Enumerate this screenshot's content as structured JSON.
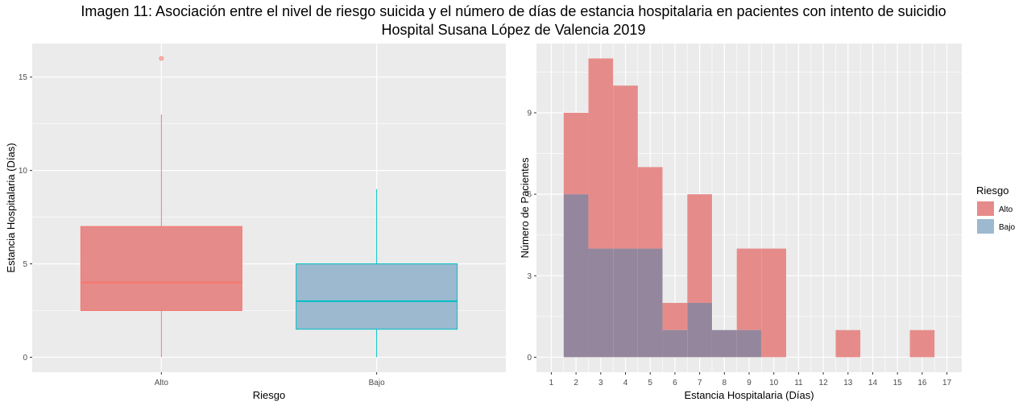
{
  "title_line1": "Imagen 11: Asociación entre el nivel de riesgo suicida y el número de días de estancia hospitalaria en pacientes con intento de suicidio",
  "title_line2": "Hospital Susana López de Valencia 2019",
  "colors": {
    "alto": "#F8766D",
    "bajo": "#00BFC4",
    "alto_fill": "#E58C8A",
    "bajo_fill": "#9CB9D0",
    "overlap_fill": "#94879D",
    "panel": "#EBEBEB",
    "grid": "#FFFFFF"
  },
  "chart_data": [
    {
      "type": "box",
      "xlabel": "Riesgo",
      "ylabel": "Estancia Hospitalaria (Días)",
      "ylim": [
        -0.8,
        16.8
      ],
      "yticks": [
        0,
        5,
        10,
        15
      ],
      "grid": true,
      "categories": [
        "Alto",
        "Bajo"
      ],
      "boxes": [
        {
          "name": "Alto",
          "whisker_low": 0,
          "q1": 2.5,
          "median": 4,
          "q3": 7,
          "whisker_high": 13,
          "outliers": [
            16
          ]
        },
        {
          "name": "Bajo",
          "whisker_low": 0,
          "q1": 1.5,
          "median": 3,
          "q3": 5,
          "whisker_high": 9,
          "outliers": []
        }
      ]
    },
    {
      "type": "bar",
      "subtype": "histogram",
      "xlabel": "Estancia Hospitalaria (Días)",
      "ylabel": "Número de Pacientes",
      "xlim": [
        0.4,
        17.6
      ],
      "ylim": [
        -0.55,
        11.55
      ],
      "xticks": [
        1,
        2,
        3,
        4,
        5,
        6,
        7,
        8,
        9,
        10,
        11,
        12,
        13,
        14,
        15,
        16,
        17
      ],
      "yticks": [
        0,
        3,
        6,
        9
      ],
      "grid": true,
      "legend": {
        "title": "Riesgo",
        "position": "right"
      },
      "categories": [
        2,
        3,
        4,
        5,
        6,
        7,
        8,
        9,
        10,
        11,
        12,
        13,
        14,
        15,
        16
      ],
      "series": [
        {
          "name": "Alto",
          "values": [
            9,
            11,
            10,
            7,
            2,
            6,
            1,
            4,
            4,
            0,
            0,
            1,
            0,
            0,
            1
          ]
        },
        {
          "name": "Bajo",
          "values": [
            6,
            4,
            4,
            4,
            1,
            2,
            1,
            1,
            0,
            0,
            0,
            0,
            0,
            0,
            0
          ]
        }
      ]
    }
  ]
}
